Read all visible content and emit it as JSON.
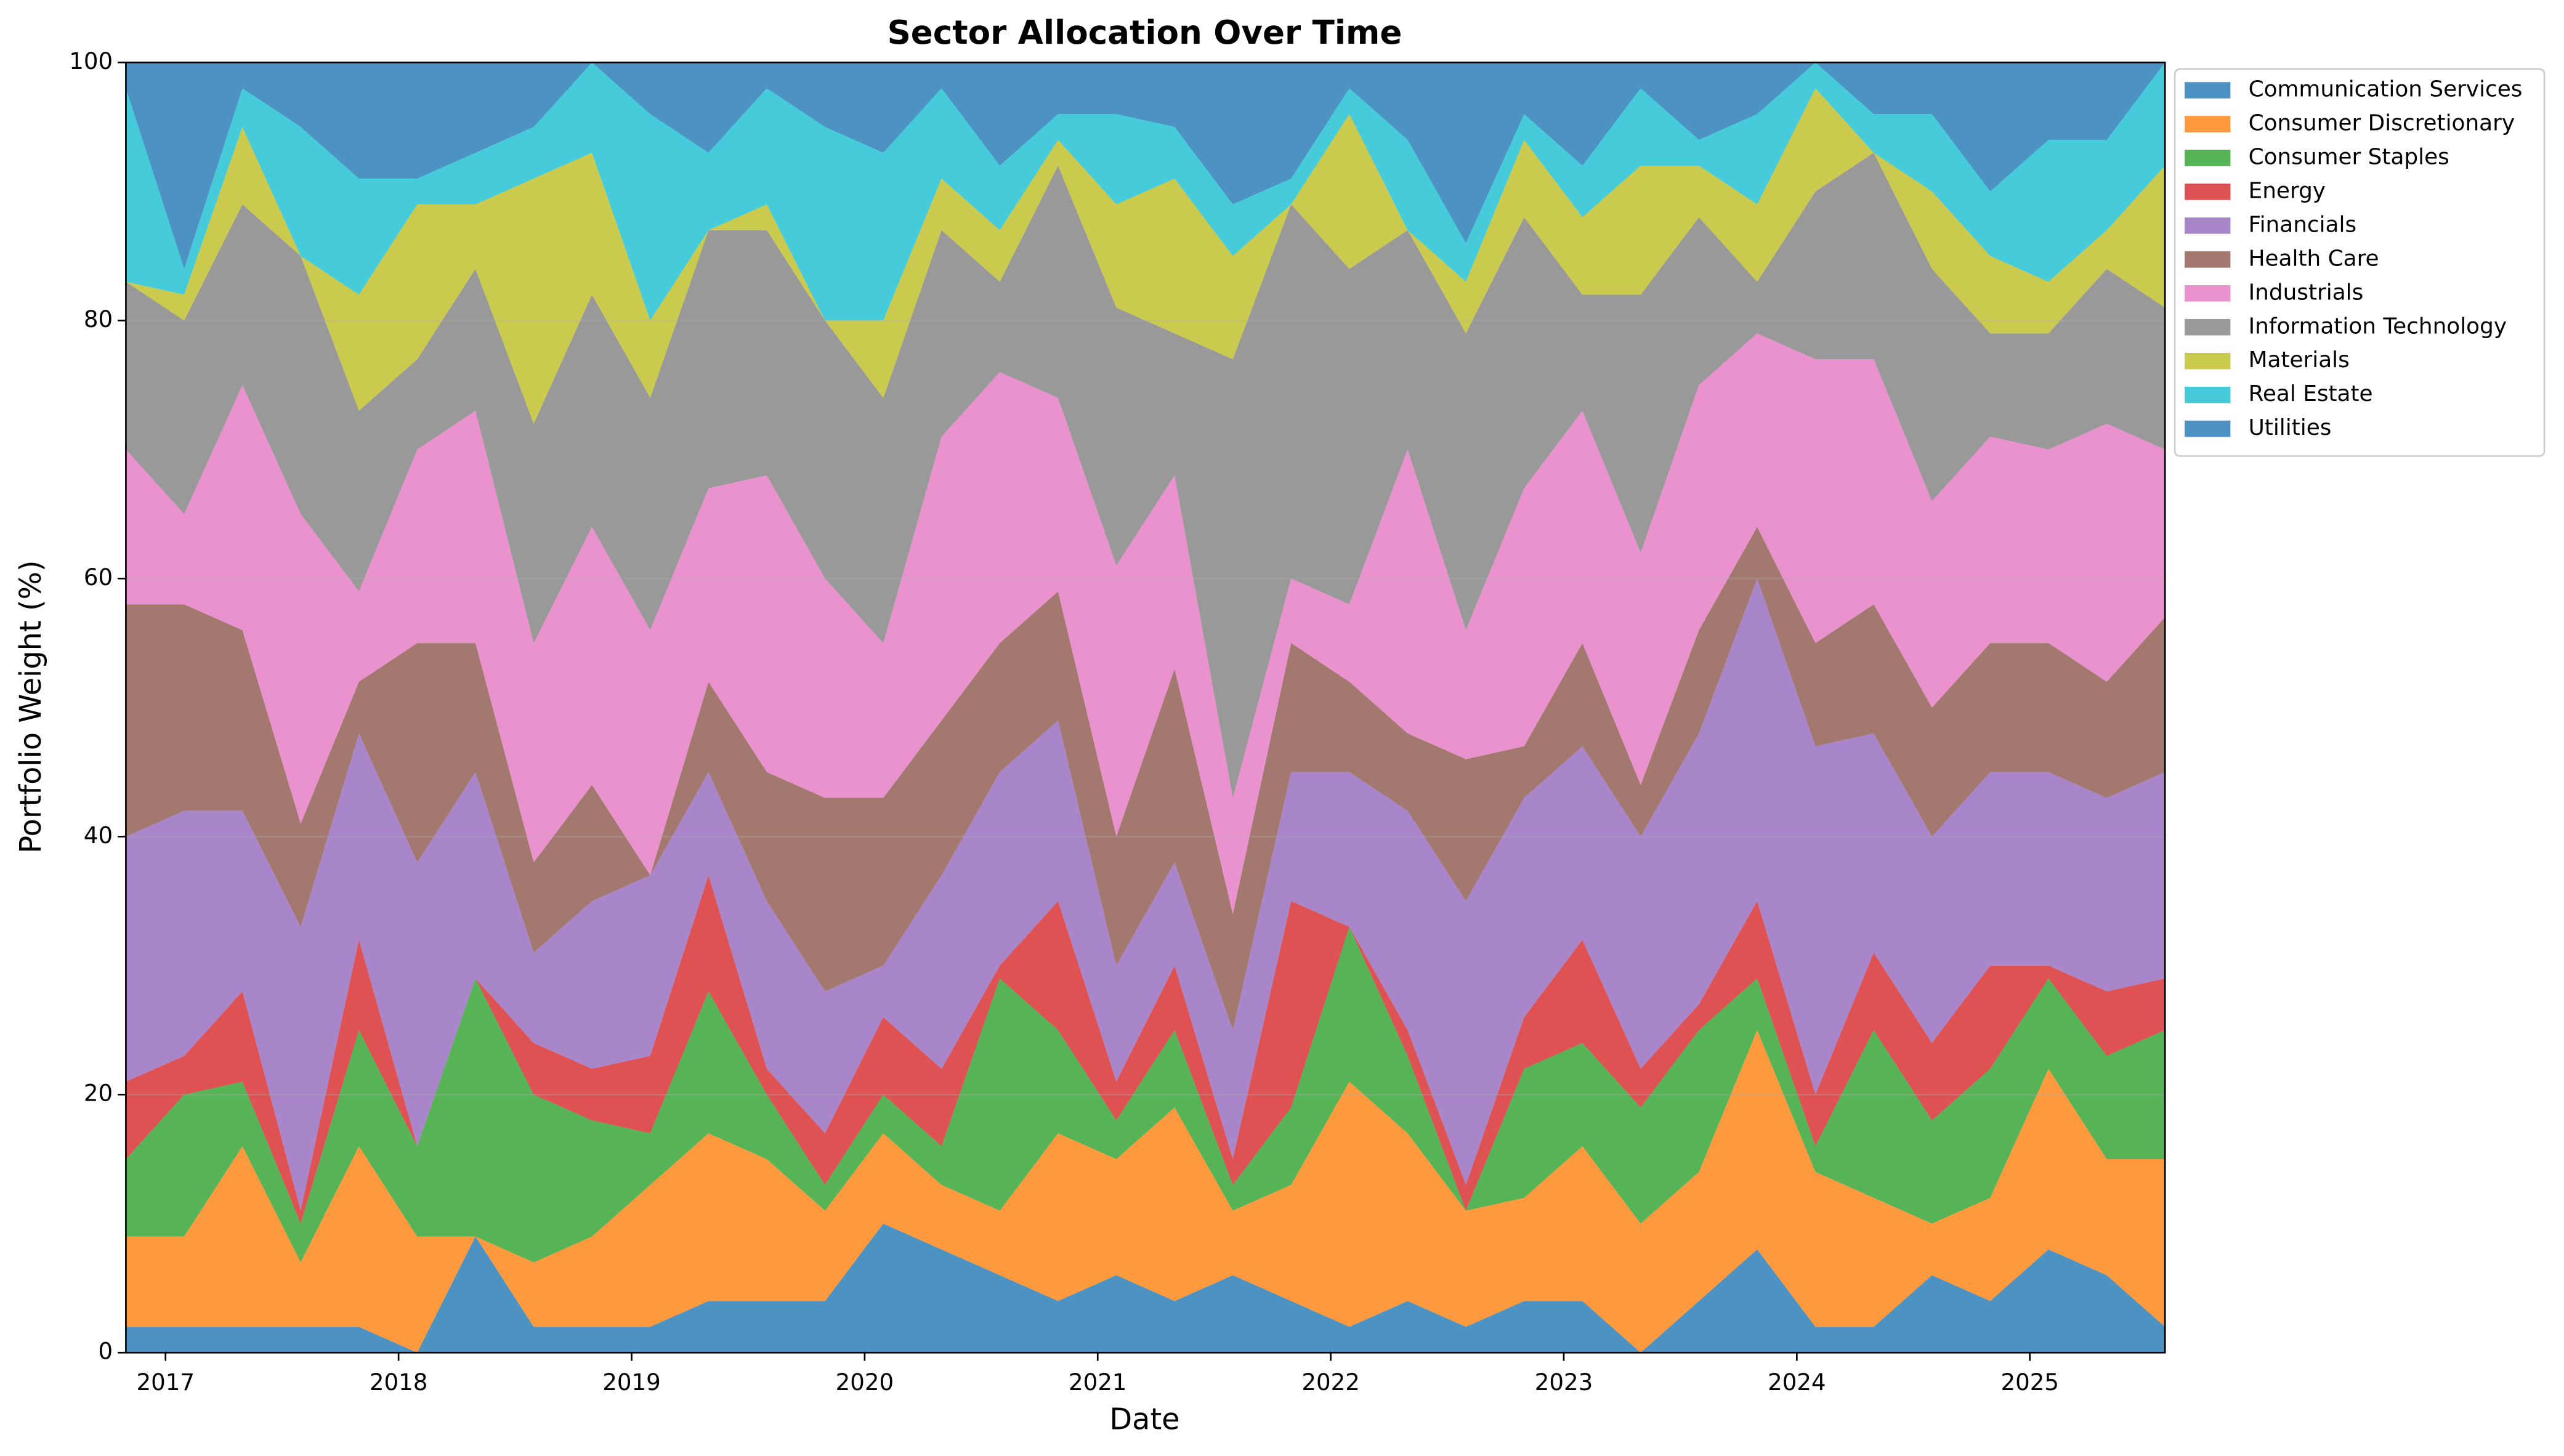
{
  "chart_data": {
    "type": "stacked-area",
    "title": "Sector Allocation Over Time",
    "x_label": "Date",
    "y_label": "Portfolio Weight (%)",
    "x": [
      2016.83,
      2017.08,
      2017.33,
      2017.58,
      2017.83,
      2018.08,
      2018.33,
      2018.58,
      2018.83,
      2019.08,
      2019.33,
      2019.58,
      2019.83,
      2020.08,
      2020.33,
      2020.58,
      2020.83,
      2021.08,
      2021.33,
      2021.58,
      2021.83,
      2022.08,
      2022.33,
      2022.58,
      2022.83,
      2023.08,
      2023.33,
      2023.58,
      2023.83,
      2024.08,
      2024.33,
      2024.58,
      2024.83,
      2025.08,
      2025.33,
      2025.58
    ],
    "xlim": [
      2016.83,
      2025.58
    ],
    "xticks": [
      2017,
      2018,
      2019,
      2020,
      2021,
      2022,
      2023,
      2024,
      2025
    ],
    "ylim": [
      0,
      100
    ],
    "yticks": [
      0,
      20,
      40,
      60,
      80,
      100
    ],
    "grid": true,
    "legend": "outside-right",
    "series": [
      {
        "name": "Communication Services",
        "color": "#1f77b4",
        "values": [
          2,
          2,
          2,
          2,
          2,
          0,
          9,
          2,
          2,
          2,
          4,
          4,
          4,
          10,
          8,
          6,
          4,
          6,
          4,
          6,
          4,
          2,
          4,
          2,
          4,
          4,
          0,
          4,
          8,
          2,
          2,
          6,
          4,
          8,
          6,
          2
        ]
      },
      {
        "name": "Consumer Discretionary",
        "color": "#ff7f0e",
        "values": [
          7,
          7,
          14,
          5,
          14,
          9,
          0,
          5,
          7,
          11,
          13,
          11,
          7,
          7,
          5,
          5,
          13,
          9,
          15,
          5,
          9,
          19,
          13,
          9,
          8,
          12,
          10,
          10,
          17,
          12,
          10,
          4,
          8,
          14,
          9,
          13
        ]
      },
      {
        "name": "Consumer Staples",
        "color": "#2ca02c",
        "values": [
          6,
          11,
          5,
          3,
          9,
          7,
          20,
          13,
          9,
          4,
          11,
          5,
          2,
          3,
          3,
          18,
          8,
          3,
          6,
          2,
          6,
          12,
          6,
          0,
          10,
          8,
          9,
          11,
          4,
          2,
          13,
          8,
          10,
          7,
          8,
          10
        ]
      },
      {
        "name": "Energy",
        "color": "#d62728",
        "values": [
          6,
          3,
          7,
          1,
          7,
          0,
          0,
          4,
          4,
          6,
          9,
          2,
          4,
          6,
          6,
          1,
          10,
          3,
          5,
          2,
          16,
          0,
          2,
          2,
          4,
          8,
          3,
          2,
          6,
          4,
          6,
          6,
          8,
          1,
          5,
          4
        ]
      },
      {
        "name": "Financials",
        "color": "#9467bd",
        "values": [
          19,
          19,
          14,
          22,
          16,
          22,
          16,
          7,
          13,
          14,
          8,
          13,
          11,
          4,
          15,
          15,
          14,
          9,
          8,
          10,
          10,
          12,
          17,
          22,
          17,
          15,
          18,
          21,
          25,
          27,
          17,
          16,
          15,
          15,
          15,
          16
        ]
      },
      {
        "name": "Health Care",
        "color": "#8c564b",
        "values": [
          18,
          16,
          14,
          8,
          4,
          17,
          10,
          7,
          9,
          0,
          7,
          10,
          15,
          13,
          12,
          10,
          10,
          10,
          15,
          9,
          10,
          7,
          6,
          11,
          4,
          8,
          4,
          8,
          4,
          8,
          10,
          10,
          10,
          10,
          9,
          12
        ]
      },
      {
        "name": "Industrials",
        "color": "#e377c2",
        "values": [
          12,
          7,
          19,
          24,
          7,
          15,
          18,
          17,
          20,
          19,
          15,
          23,
          17,
          12,
          22,
          21,
          15,
          21,
          15,
          9,
          5,
          6,
          22,
          10,
          20,
          18,
          18,
          19,
          15,
          22,
          19,
          16,
          16,
          15,
          20,
          13
        ]
      },
      {
        "name": "Information Technology",
        "color": "#7f7f7f",
        "values": [
          13,
          15,
          14,
          20,
          14,
          7,
          11,
          17,
          18,
          18,
          20,
          19,
          20,
          19,
          16,
          7,
          18,
          20,
          11,
          34,
          29,
          26,
          17,
          23,
          21,
          9,
          20,
          13,
          4,
          13,
          16,
          18,
          8,
          9,
          12,
          11
        ]
      },
      {
        "name": "Materials",
        "color": "#bcbd22",
        "values": [
          0,
          2,
          6,
          0,
          9,
          12,
          5,
          19,
          11,
          6,
          0,
          2,
          0,
          6,
          4,
          4,
          2,
          8,
          12,
          8,
          0,
          12,
          0,
          4,
          6,
          6,
          10,
          4,
          6,
          8,
          0,
          6,
          6,
          4,
          3,
          11
        ]
      },
      {
        "name": "Real Estate",
        "color": "#17becf",
        "values": [
          15,
          2,
          3,
          10,
          9,
          2,
          4,
          4,
          7,
          16,
          6,
          9,
          15,
          13,
          7,
          5,
          2,
          7,
          4,
          4,
          2,
          2,
          7,
          3,
          2,
          4,
          6,
          2,
          7,
          2,
          3,
          6,
          5,
          11,
          7,
          8
        ]
      },
      {
        "name": "Utilities",
        "color": "#1f77b4",
        "values": [
          2,
          16,
          2,
          5,
          9,
          9,
          7,
          5,
          0,
          4,
          7,
          2,
          5,
          7,
          2,
          8,
          4,
          4,
          5,
          11,
          9,
          2,
          6,
          14,
          4,
          8,
          2,
          6,
          4,
          0,
          4,
          4,
          10,
          6,
          6,
          0
        ]
      }
    ]
  }
}
